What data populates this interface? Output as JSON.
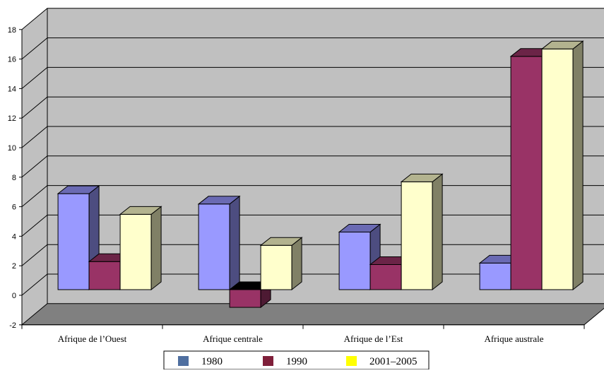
{
  "chart_data": {
    "type": "bar",
    "style": "3d-clustered-column",
    "categories": [
      "Afrique de l’Ouest",
      "Afrique centrale",
      "Afrique de l’Est",
      "Afrique  australe"
    ],
    "series": [
      {
        "name": "1980",
        "values": [
          6.5,
          5.8,
          3.9,
          1.8
        ]
      },
      {
        "name": "1990",
        "values": [
          1.9,
          -1.2,
          1.7,
          15.8
        ]
      },
      {
        "name": "2001–2005",
        "values": [
          5.1,
          3.0,
          7.3,
          16.3
        ]
      }
    ],
    "ylim": [
      -2,
      18
    ],
    "yticks": [
      -2,
      0,
      2,
      4,
      6,
      8,
      10,
      12,
      14,
      16,
      18
    ],
    "grid": true,
    "legend": "bottom-center",
    "colors": {
      "bars": [
        "#9999ff",
        "#993366",
        "#ffffcc"
      ],
      "bar_sides": [
        "#4d4d80",
        "#4d1a33",
        "#808066"
      ],
      "bar_tops": [
        "#6a6ab3",
        "#6b2447",
        "#b3b38f"
      ],
      "negative_top": "#000000",
      "legend_swatches": [
        "#4f6fa0",
        "#7f1f3a",
        "#ffff00"
      ],
      "wall": "#c0c0c0",
      "floor": "#808080"
    }
  }
}
